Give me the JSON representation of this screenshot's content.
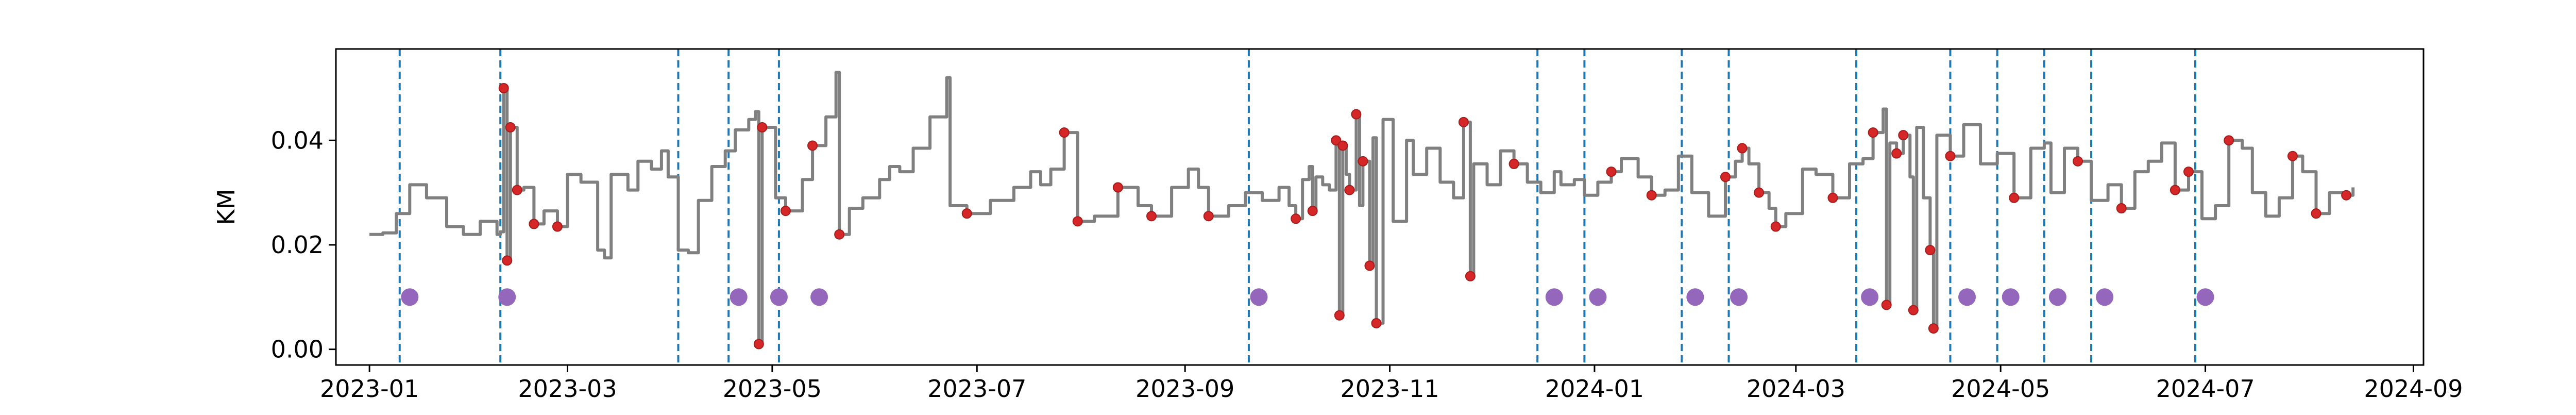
{
  "chart_data": {
    "type": "line",
    "title": "",
    "xlabel": "",
    "ylabel": "KM",
    "xlim": [
      "2022-12-22",
      "2024-09-04"
    ],
    "ylim": [
      -0.003,
      0.0575
    ],
    "grid": false,
    "legend": "none",
    "x_ticks": [
      "2023-01",
      "2023-03",
      "2023-05",
      "2023-07",
      "2023-09",
      "2023-11",
      "2024-01",
      "2024-03",
      "2024-05",
      "2024-07",
      "2024-09"
    ],
    "y_ticks": [
      0.0,
      0.02,
      0.04
    ],
    "y_tick_labels": [
      "0.00",
      "0.02",
      "0.04"
    ],
    "colors": {
      "line": "#808080",
      "marker": "#d62728",
      "marker_edge": "#a31d1d",
      "event_line": "#1f77b4",
      "event_dot": "#9467bd"
    },
    "line_points": [
      [
        "2023-01-01",
        0.022
      ],
      [
        "2023-01-05",
        0.0223
      ],
      [
        "2023-01-09",
        0.026
      ],
      [
        "2023-01-13",
        0.0315
      ],
      [
        "2023-01-18",
        0.029
      ],
      [
        "2023-01-24",
        0.0235
      ],
      [
        "2023-01-29",
        0.022
      ],
      [
        "2023-02-03",
        0.0245
      ],
      [
        "2023-02-08",
        0.022
      ],
      [
        "2023-02-09",
        0.0225
      ],
      [
        "2023-02-10",
        0.05
      ],
      [
        "2023-02-11",
        0.048
      ],
      [
        "2023-02-11",
        0.017
      ],
      [
        "2023-02-12",
        0.0425
      ],
      [
        "2023-02-14",
        0.0305
      ],
      [
        "2023-02-16",
        0.031
      ],
      [
        "2023-02-19",
        0.024
      ],
      [
        "2023-02-22",
        0.0265
      ],
      [
        "2023-02-26",
        0.0235
      ],
      [
        "2023-03-01",
        0.0335
      ],
      [
        "2023-03-05",
        0.032
      ],
      [
        "2023-03-10",
        0.019
      ],
      [
        "2023-03-12",
        0.0175
      ],
      [
        "2023-03-14",
        0.0335
      ],
      [
        "2023-03-19",
        0.0305
      ],
      [
        "2023-03-22",
        0.036
      ],
      [
        "2023-03-26",
        0.0345
      ],
      [
        "2023-03-29",
        0.038
      ],
      [
        "2023-03-31",
        0.033
      ],
      [
        "2023-04-03",
        0.019
      ],
      [
        "2023-04-06",
        0.0185
      ],
      [
        "2023-04-09",
        0.0285
      ],
      [
        "2023-04-13",
        0.035
      ],
      [
        "2023-04-17",
        0.038
      ],
      [
        "2023-04-20",
        0.042
      ],
      [
        "2023-04-24",
        0.044
      ],
      [
        "2023-04-26",
        0.0455
      ],
      [
        "2023-04-27",
        0.001
      ],
      [
        "2023-04-28",
        0.0425
      ],
      [
        "2023-05-02",
        0.029
      ],
      [
        "2023-05-05",
        0.0265
      ],
      [
        "2023-05-10",
        0.0325
      ],
      [
        "2023-05-13",
        0.039
      ],
      [
        "2023-05-17",
        0.0445
      ],
      [
        "2023-05-20",
        0.053
      ],
      [
        "2023-05-21",
        0.022
      ],
      [
        "2023-05-24",
        0.027
      ],
      [
        "2023-05-28",
        0.029
      ],
      [
        "2023-06-02",
        0.0325
      ],
      [
        "2023-06-05",
        0.035
      ],
      [
        "2023-06-08",
        0.034
      ],
      [
        "2023-06-12",
        0.0385
      ],
      [
        "2023-06-17",
        0.0445
      ],
      [
        "2023-06-22",
        0.052
      ],
      [
        "2023-06-23",
        0.0275
      ],
      [
        "2023-06-28",
        0.026
      ],
      [
        "2023-07-05",
        0.0285
      ],
      [
        "2023-07-12",
        0.031
      ],
      [
        "2023-07-17",
        0.034
      ],
      [
        "2023-07-20",
        0.0315
      ],
      [
        "2023-07-23",
        0.0345
      ],
      [
        "2023-07-27",
        0.0415
      ],
      [
        "2023-07-31",
        0.0245
      ],
      [
        "2023-08-05",
        0.0255
      ],
      [
        "2023-08-12",
        0.031
      ],
      [
        "2023-08-18",
        0.0275
      ],
      [
        "2023-08-22",
        0.0255
      ],
      [
        "2023-08-28",
        0.031
      ],
      [
        "2023-09-02",
        0.0345
      ],
      [
        "2023-09-05",
        0.031
      ],
      [
        "2023-09-08",
        0.0255
      ],
      [
        "2023-09-14",
        0.0275
      ],
      [
        "2023-09-19",
        0.03
      ],
      [
        "2023-09-24",
        0.0285
      ],
      [
        "2023-09-29",
        0.031
      ],
      [
        "2023-10-02",
        0.0275
      ],
      [
        "2023-10-04",
        0.025
      ],
      [
        "2023-10-06",
        0.0325
      ],
      [
        "2023-10-08",
        0.035
      ],
      [
        "2023-10-09",
        0.0265
      ],
      [
        "2023-10-10",
        0.033
      ],
      [
        "2023-10-12",
        0.0315
      ],
      [
        "2023-10-14",
        0.0305
      ],
      [
        "2023-10-16",
        0.04
      ],
      [
        "2023-10-17",
        0.0065
      ],
      [
        "2023-10-18",
        0.039
      ],
      [
        "2023-10-19",
        0.0335
      ],
      [
        "2023-10-20",
        0.0305
      ],
      [
        "2023-10-22",
        0.045
      ],
      [
        "2023-10-23",
        0.0275
      ],
      [
        "2023-10-24",
        0.036
      ],
      [
        "2023-10-26",
        0.016
      ],
      [
        "2023-10-27",
        0.0405
      ],
      [
        "2023-10-28",
        0.005
      ],
      [
        "2023-10-30",
        0.044
      ],
      [
        "2023-11-02",
        0.0245
      ],
      [
        "2023-11-06",
        0.04
      ],
      [
        "2023-11-08",
        0.0335
      ],
      [
        "2023-11-12",
        0.0385
      ],
      [
        "2023-11-16",
        0.032
      ],
      [
        "2023-11-20",
        0.029
      ],
      [
        "2023-11-23",
        0.0435
      ],
      [
        "2023-11-25",
        0.014
      ],
      [
        "2023-11-26",
        0.0355
      ],
      [
        "2023-11-30",
        0.0315
      ],
      [
        "2023-12-04",
        0.038
      ],
      [
        "2023-12-08",
        0.0355
      ],
      [
        "2023-12-12",
        0.032
      ],
      [
        "2023-12-16",
        0.03
      ],
      [
        "2023-12-20",
        0.034
      ],
      [
        "2023-12-22",
        0.0315
      ],
      [
        "2023-12-26",
        0.0325
      ],
      [
        "2023-12-29",
        0.0295
      ],
      [
        "2024-01-02",
        0.032
      ],
      [
        "2024-01-06",
        0.034
      ],
      [
        "2024-01-09",
        0.0365
      ],
      [
        "2024-01-14",
        0.033
      ],
      [
        "2024-01-18",
        0.0295
      ],
      [
        "2024-01-22",
        0.0305
      ],
      [
        "2024-01-26",
        0.037
      ],
      [
        "2024-01-30",
        0.03
      ],
      [
        "2024-02-04",
        0.0255
      ],
      [
        "2024-02-09",
        0.033
      ],
      [
        "2024-02-12",
        0.036
      ],
      [
        "2024-02-14",
        0.0385
      ],
      [
        "2024-02-16",
        0.0355
      ],
      [
        "2024-02-19",
        0.03
      ],
      [
        "2024-02-22",
        0.027
      ],
      [
        "2024-02-24",
        0.0235
      ],
      [
        "2024-02-27",
        0.026
      ],
      [
        "2024-03-03",
        0.0345
      ],
      [
        "2024-03-07",
        0.0335
      ],
      [
        "2024-03-12",
        0.029
      ],
      [
        "2024-03-17",
        0.0355
      ],
      [
        "2024-03-21",
        0.0365
      ],
      [
        "2024-03-24",
        0.0415
      ],
      [
        "2024-03-27",
        0.046
      ],
      [
        "2024-03-28",
        0.0085
      ],
      [
        "2024-03-29",
        0.0395
      ],
      [
        "2024-03-31",
        0.0375
      ],
      [
        "2024-04-02",
        0.041
      ],
      [
        "2024-04-04",
        0.033
      ],
      [
        "2024-04-05",
        0.0075
      ],
      [
        "2024-04-06",
        0.0425
      ],
      [
        "2024-04-08",
        0.029
      ],
      [
        "2024-04-10",
        0.019
      ],
      [
        "2024-04-11",
        0.004
      ],
      [
        "2024-04-12",
        0.041
      ],
      [
        "2024-04-16",
        0.037
      ],
      [
        "2024-04-20",
        0.043
      ],
      [
        "2024-04-25",
        0.0355
      ],
      [
        "2024-04-30",
        0.0375
      ],
      [
        "2024-05-05",
        0.029
      ],
      [
        "2024-05-10",
        0.0385
      ],
      [
        "2024-05-14",
        0.0395
      ],
      [
        "2024-05-16",
        0.03
      ],
      [
        "2024-05-20",
        0.0385
      ],
      [
        "2024-05-24",
        0.036
      ],
      [
        "2024-05-28",
        0.0285
      ],
      [
        "2024-06-02",
        0.0315
      ],
      [
        "2024-06-06",
        0.027
      ],
      [
        "2024-06-10",
        0.034
      ],
      [
        "2024-06-14",
        0.036
      ],
      [
        "2024-06-18",
        0.0395
      ],
      [
        "2024-06-22",
        0.0305
      ],
      [
        "2024-06-26",
        0.034
      ],
      [
        "2024-06-30",
        0.025
      ],
      [
        "2024-07-04",
        0.0275
      ],
      [
        "2024-07-08",
        0.04
      ],
      [
        "2024-07-12",
        0.0385
      ],
      [
        "2024-07-15",
        0.03
      ],
      [
        "2024-07-19",
        0.0255
      ],
      [
        "2024-07-23",
        0.029
      ],
      [
        "2024-07-27",
        0.037
      ],
      [
        "2024-07-30",
        0.034
      ],
      [
        "2024-08-03",
        0.026
      ],
      [
        "2024-08-07",
        0.03
      ],
      [
        "2024-08-12",
        0.0295
      ],
      [
        "2024-08-14",
        0.031
      ]
    ],
    "red_markers": [
      [
        "2023-02-10",
        0.05
      ],
      [
        "2023-02-11",
        0.017
      ],
      [
        "2023-02-12",
        0.0425
      ],
      [
        "2023-02-14",
        0.0305
      ],
      [
        "2023-02-19",
        0.024
      ],
      [
        "2023-02-26",
        0.0235
      ],
      [
        "2023-04-27",
        0.001
      ],
      [
        "2023-04-28",
        0.0425
      ],
      [
        "2023-05-05",
        0.0265
      ],
      [
        "2023-05-13",
        0.039
      ],
      [
        "2023-05-21",
        0.022
      ],
      [
        "2023-06-28",
        0.026
      ],
      [
        "2023-07-27",
        0.0415
      ],
      [
        "2023-07-31",
        0.0245
      ],
      [
        "2023-08-12",
        0.031
      ],
      [
        "2023-08-22",
        0.0255
      ],
      [
        "2023-09-08",
        0.0255
      ],
      [
        "2023-10-04",
        0.025
      ],
      [
        "2023-10-09",
        0.0265
      ],
      [
        "2023-10-16",
        0.04
      ],
      [
        "2023-10-17",
        0.0065
      ],
      [
        "2023-10-18",
        0.039
      ],
      [
        "2023-10-20",
        0.0305
      ],
      [
        "2023-10-22",
        0.045
      ],
      [
        "2023-10-24",
        0.036
      ],
      [
        "2023-10-26",
        0.016
      ],
      [
        "2023-10-28",
        0.005
      ],
      [
        "2023-11-23",
        0.0435
      ],
      [
        "2023-11-25",
        0.014
      ],
      [
        "2023-12-08",
        0.0355
      ],
      [
        "2024-01-06",
        0.034
      ],
      [
        "2024-01-18",
        0.0295
      ],
      [
        "2024-02-09",
        0.033
      ],
      [
        "2024-02-14",
        0.0385
      ],
      [
        "2024-02-19",
        0.03
      ],
      [
        "2024-02-24",
        0.0235
      ],
      [
        "2024-03-12",
        0.029
      ],
      [
        "2024-03-24",
        0.0415
      ],
      [
        "2024-03-28",
        0.0085
      ],
      [
        "2024-03-31",
        0.0375
      ],
      [
        "2024-04-02",
        0.041
      ],
      [
        "2024-04-05",
        0.0075
      ],
      [
        "2024-04-10",
        0.019
      ],
      [
        "2024-04-11",
        0.004
      ],
      [
        "2024-04-16",
        0.037
      ],
      [
        "2024-05-05",
        0.029
      ],
      [
        "2024-05-24",
        0.036
      ],
      [
        "2024-06-06",
        0.027
      ],
      [
        "2024-06-22",
        0.0305
      ],
      [
        "2024-06-26",
        0.034
      ],
      [
        "2024-07-08",
        0.04
      ],
      [
        "2024-07-27",
        0.037
      ],
      [
        "2024-08-03",
        0.026
      ],
      [
        "2024-08-12",
        0.0295
      ]
    ],
    "event_lines": [
      "2023-01-10",
      "2023-02-09",
      "2023-04-03",
      "2023-04-18",
      "2023-05-03",
      "2023-09-20",
      "2023-12-15",
      "2023-12-29",
      "2024-01-27",
      "2024-02-10",
      "2024-03-19",
      "2024-04-16",
      "2024-04-30",
      "2024-05-14",
      "2024-05-28",
      "2024-06-28"
    ],
    "event_dots": [
      [
        "2023-01-13",
        0.01
      ],
      [
        "2023-02-11",
        0.01
      ],
      [
        "2023-04-21",
        0.01
      ],
      [
        "2023-05-03",
        0.01
      ],
      [
        "2023-05-15",
        0.01
      ],
      [
        "2023-09-23",
        0.01
      ],
      [
        "2023-12-20",
        0.01
      ],
      [
        "2024-01-02",
        0.01
      ],
      [
        "2024-01-31",
        0.01
      ],
      [
        "2024-02-13",
        0.01
      ],
      [
        "2024-03-23",
        0.01
      ],
      [
        "2024-04-21",
        0.01
      ],
      [
        "2024-05-04",
        0.01
      ],
      [
        "2024-05-18",
        0.01
      ],
      [
        "2024-06-01",
        0.01
      ],
      [
        "2024-07-01",
        0.01
      ]
    ]
  }
}
